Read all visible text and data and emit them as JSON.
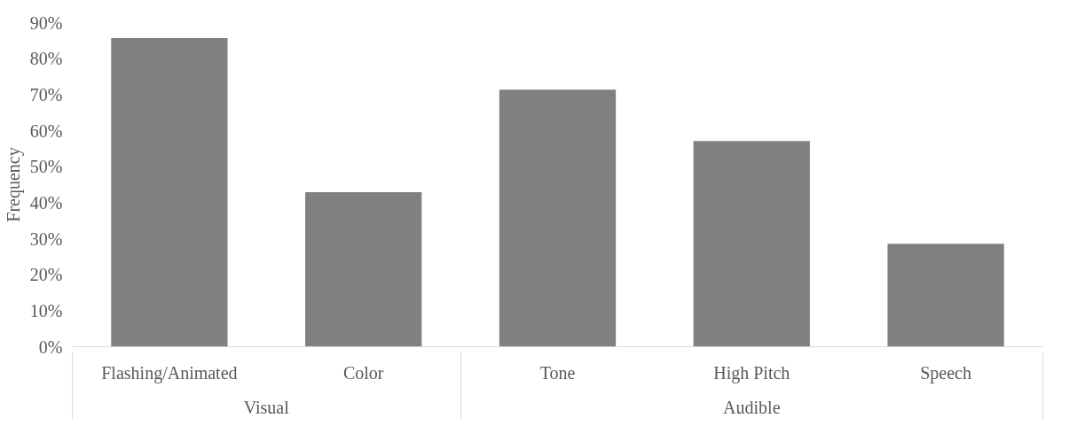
{
  "chart_data": {
    "type": "bar",
    "ylabel": "Frequency",
    "categories": [
      "Flashing/Animated",
      "Color",
      "Tone",
      "High Pitch",
      "Speech"
    ],
    "values": [
      85.7,
      42.9,
      71.4,
      57.1,
      28.6
    ],
    "color": "#808080",
    "ylim": [
      0,
      90
    ],
    "yticks": [
      {
        "value": 0,
        "label": "0%"
      },
      {
        "value": 10,
        "label": "10%"
      },
      {
        "value": 20,
        "label": "20%"
      },
      {
        "value": 30,
        "label": "30%"
      },
      {
        "value": 40,
        "label": "40%"
      },
      {
        "value": 50,
        "label": "50%"
      },
      {
        "value": 60,
        "label": "60%"
      },
      {
        "value": 70,
        "label": "70%"
      },
      {
        "value": 80,
        "label": "80%"
      },
      {
        "value": 90,
        "label": "90%"
      }
    ],
    "annotations": [
      "Visual",
      "Audible"
    ],
    "grid": false
  }
}
